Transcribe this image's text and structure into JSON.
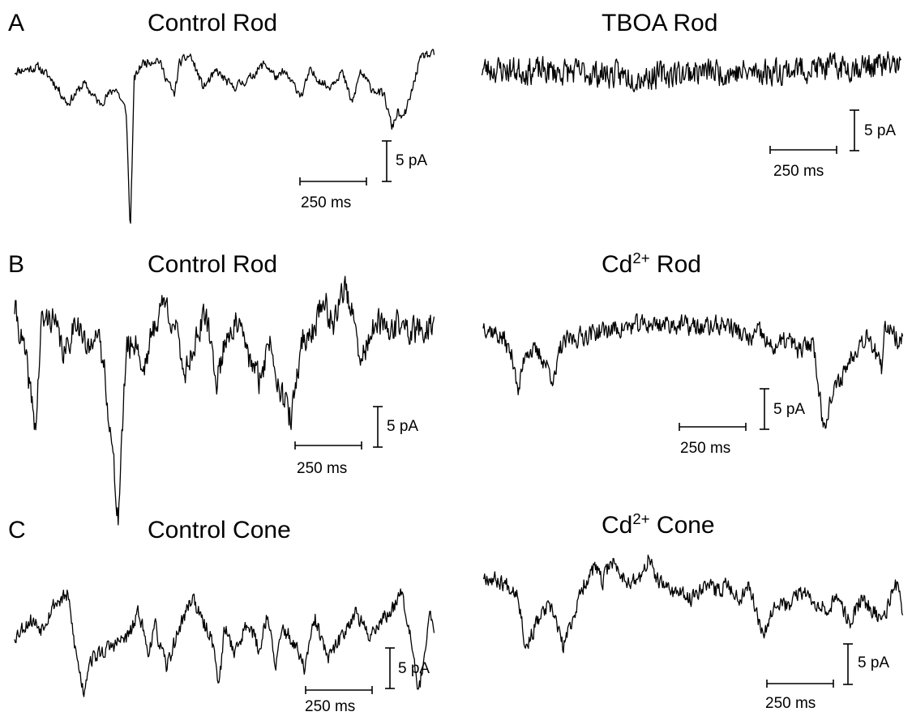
{
  "figure": {
    "panel_letters": {
      "a": "A",
      "b": "B",
      "c": "C"
    },
    "titles": {
      "a_left": "Control Rod",
      "a_right": "TBOA Rod",
      "b_left": "Control Rod",
      "b_right_base": "Cd",
      "b_right_sup": "2+",
      "b_right_rest": " Rod",
      "c_left": "Control Cone",
      "c_right_base": "Cd",
      "c_right_sup": "2+",
      "c_right_rest": " Cone"
    },
    "scale_bar": {
      "time_label": "250 ms",
      "current_label": "5 pA",
      "time_ms": 250,
      "current_pA": 5
    }
  },
  "chart_data": [
    {
      "type": "line",
      "panel": "A",
      "title": "Control Rod",
      "scale": {
        "time_ms": 250,
        "current_pA": 5
      },
      "trace": {
        "duration_ms": 1580,
        "noise_pA": 0.5,
        "x_ms": [
          0,
          90,
          140,
          200,
          260,
          320,
          380,
          420,
          435,
          450,
          480,
          540,
          600,
          620,
          660,
          710,
          760,
          820,
          880,
          940,
          990,
          1010,
          1080,
          1110,
          1180,
          1230,
          1270,
          1300,
          1340,
          1390,
          1420,
          1440,
          1460,
          1490,
          1520,
          1540,
          1580
        ],
        "y_pA": [
          -2,
          -1.5,
          -3,
          -6,
          -3.5,
          -6,
          -4,
          -7,
          -22,
          -3,
          -1,
          -0.5,
          -5,
          -1,
          0,
          -4,
          -2,
          -4,
          -3,
          -1,
          -3,
          -2,
          -5,
          -2,
          -4,
          -2,
          -6,
          -2,
          -4,
          -5,
          -9,
          -7,
          -8,
          -5,
          -1,
          0,
          0
        ]
      }
    },
    {
      "type": "line",
      "panel": "A",
      "title": "TBOA Rod",
      "scale": {
        "time_ms": 250,
        "current_pA": 5
      },
      "trace": {
        "duration_ms": 1580,
        "noise_pA": 1.5,
        "x_ms": [
          0,
          400,
          600,
          800,
          1000,
          1200,
          1400,
          1580
        ],
        "y_pA": [
          0,
          -0.5,
          -1,
          -0.3,
          -0.5,
          0,
          0.3,
          0.5
        ]
      }
    },
    {
      "type": "line",
      "panel": "B",
      "title": "Cd2+ Rod",
      "scale": {
        "time_ms": 250,
        "current_pA": 5
      },
      "trace": {
        "duration_ms": 1580,
        "noise_pA": 1.1,
        "x_ms": [
          0,
          80,
          120,
          130,
          160,
          220,
          270,
          290,
          320,
          420,
          520,
          620,
          720,
          820,
          920,
          1000,
          1040,
          1080,
          1150,
          1190,
          1240,
          1260,
          1280,
          1300,
          1340,
          1400,
          1450,
          1500,
          1510,
          1530,
          1560,
          1580
        ],
        "y_pA": [
          0,
          -2,
          -5,
          -9,
          -3,
          -4,
          -7,
          -3,
          -2,
          -1,
          -0.5,
          0,
          0,
          -0.5,
          0,
          -2,
          -1,
          -3,
          -2,
          -3.5,
          -2,
          -7,
          -13,
          -10,
          -7,
          -3,
          -1,
          -6,
          -1,
          0,
          -2,
          -1
        ]
      }
    },
    {
      "type": "line",
      "panel": "B",
      "title": "Control Rod",
      "scale": {
        "time_ms": 250,
        "current_pA": 5
      },
      "trace": {
        "duration_ms": 1580,
        "noise_pA": 1.6,
        "x_ms": [
          0,
          40,
          80,
          100,
          140,
          190,
          230,
          280,
          300,
          340,
          390,
          420,
          460,
          480,
          520,
          560,
          600,
          640,
          680,
          720,
          760,
          800,
          840,
          880,
          920,
          960,
          1000,
          1040,
          1080,
          1120,
          1160,
          1200,
          1240,
          1270,
          1300,
          1340,
          1370,
          1400,
          1440,
          1500,
          1580
        ],
        "y_pA": [
          0,
          -6,
          -15,
          -2,
          -1,
          -6,
          -1,
          -6,
          -2,
          -8,
          -26,
          -5,
          -4,
          -8,
          -3,
          1,
          -2,
          -8,
          -4,
          -1,
          -9,
          -3,
          -2,
          -6,
          -9,
          -4,
          -10,
          -14,
          -4,
          -3,
          1,
          -2,
          3,
          -1,
          -7,
          -3,
          -2,
          -3,
          -2,
          -3,
          -2
        ]
      }
    },
    {
      "type": "line",
      "panel": "C",
      "title": "Control Cone",
      "scale": {
        "time_ms": 250,
        "current_pA": 5
      },
      "trace": {
        "duration_ms": 1580,
        "noise_pA": 0.9,
        "x_ms": [
          0,
          60,
          100,
          150,
          200,
          230,
          260,
          280,
          330,
          380,
          430,
          470,
          500,
          530,
          570,
          620,
          670,
          700,
          740,
          770,
          790,
          830,
          880,
          920,
          950,
          980,
          1010,
          1050,
          1090,
          1130,
          1180,
          1230,
          1280,
          1330,
          1380,
          1420,
          1450,
          1480,
          1500,
          1520,
          1560,
          1580
        ],
        "y_pA": [
          -4,
          -2,
          -3,
          0,
          1,
          -6,
          -11,
          -7,
          -6,
          -5,
          -4,
          -1,
          -6,
          -3,
          -8,
          -3,
          1,
          -2,
          -4,
          -10,
          -3,
          -6,
          -2,
          -6,
          -1,
          -8,
          -3,
          -5,
          -8,
          -2,
          -7,
          -4,
          -1,
          -4,
          -2,
          -1,
          2,
          -2,
          -6,
          -11,
          -2,
          -3
        ]
      }
    },
    {
      "type": "line",
      "panel": "C",
      "title": "Cd2+ Cone",
      "scale": {
        "time_ms": 250,
        "current_pA": 5
      },
      "trace": {
        "duration_ms": 1580,
        "noise_pA": 0.9,
        "x_ms": [
          0,
          80,
          130,
          160,
          200,
          240,
          270,
          300,
          330,
          380,
          420,
          450,
          480,
          520,
          560,
          600,
          620,
          660,
          720,
          780,
          830,
          880,
          920,
          960,
          1000,
          1030,
          1060,
          1100,
          1150,
          1190,
          1240,
          1290,
          1340,
          1380,
          1420,
          1460,
          1500,
          1540,
          1560,
          1580
        ],
        "y_pA": [
          0,
          -1,
          -2,
          -9,
          -6,
          -4,
          -5,
          -9,
          -6,
          -1,
          1,
          -1,
          2,
          0,
          -1,
          0,
          2,
          -1,
          -2,
          -3,
          -1,
          -2,
          -1,
          -3,
          -1,
          -5,
          -7,
          -3,
          -4,
          -2,
          -3,
          -4,
          -3,
          -6,
          -3,
          -4,
          -6,
          -2,
          -1,
          -6
        ]
      }
    }
  ]
}
